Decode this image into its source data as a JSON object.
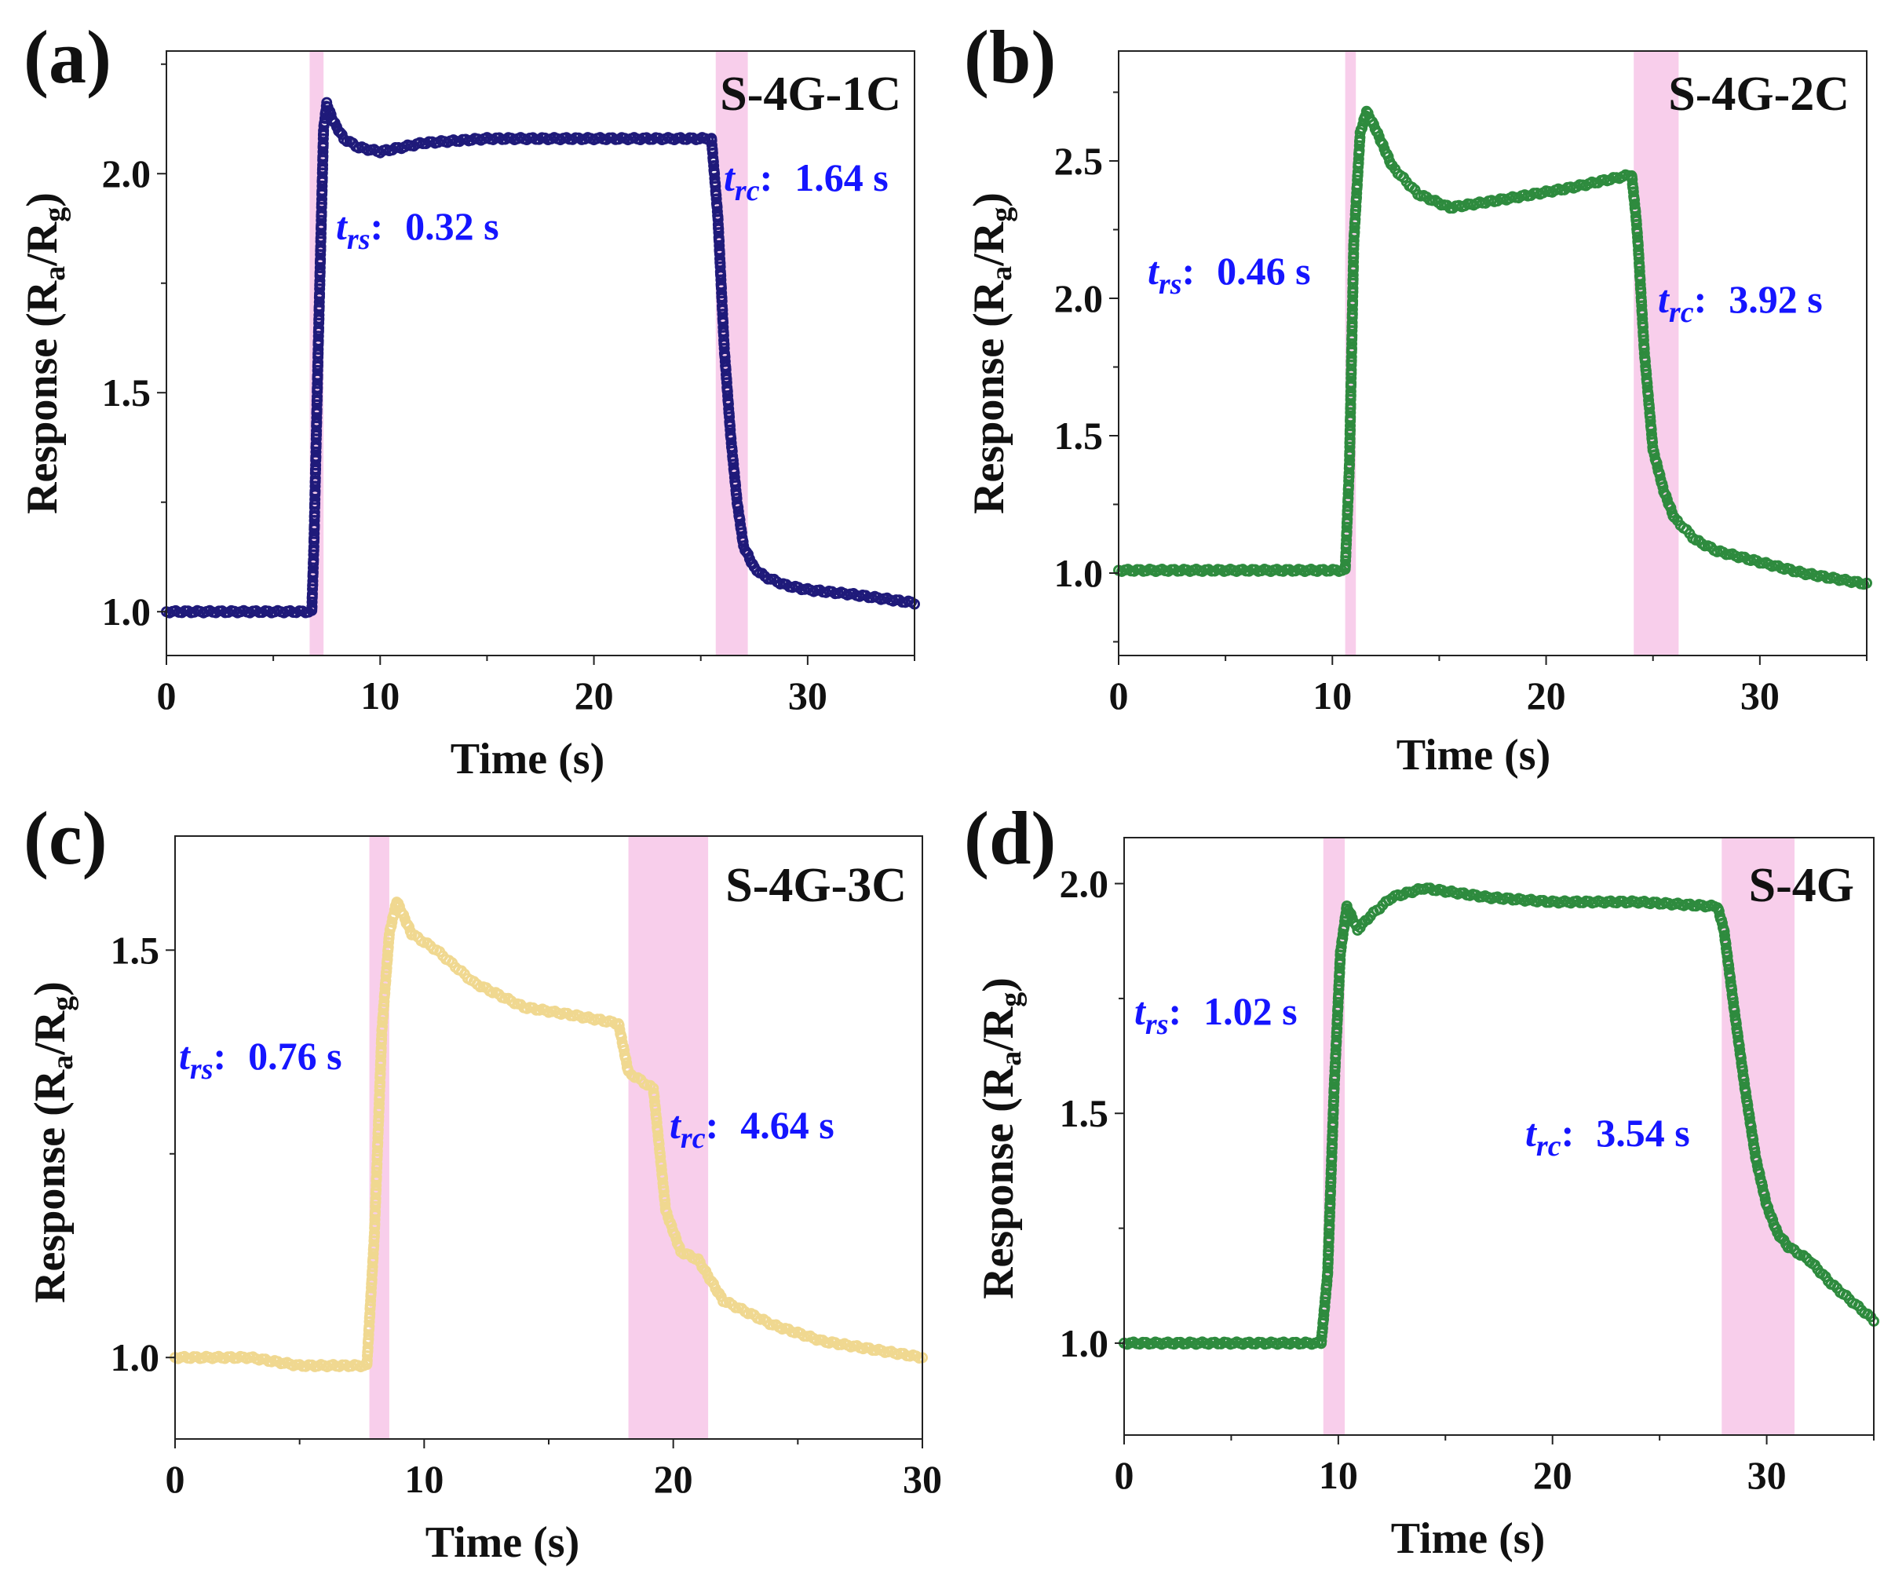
{
  "chart_data": [
    {
      "type": "scatter",
      "panel_label": "(a)",
      "sample": "S-4G-1C",
      "xlabel": "Time (s)",
      "ylabel_main": "Response (R",
      "ylabel_sub1": "a",
      "ylabel_mid": "/R",
      "ylabel_sub2": "g",
      "ylabel_end": ")",
      "xlim": [
        0,
        35
      ],
      "ylim": [
        0.9,
        2.28
      ],
      "xticks": [
        0,
        10,
        20,
        30
      ],
      "xtick_labels": [
        "0",
        "10",
        "20",
        "30"
      ],
      "yticks": [
        1.0,
        1.5,
        2.0
      ],
      "ytick_labels": [
        "1.0",
        "1.5",
        "2.0"
      ],
      "color": "#1f1a7a",
      "shaded_regions": [
        [
          6.7,
          7.35
        ],
        [
          25.7,
          27.2
        ]
      ],
      "shade_color": "#f7c6e8",
      "response_time": {
        "symbol": "t",
        "sub": "rs",
        "sep": ":",
        "value": "0.32 s"
      },
      "recovery_time": {
        "symbol": "t",
        "sub": "rc",
        "sep": ":",
        "value": "1.64 s"
      },
      "series": [
        {
          "x": [
            0,
            6.8,
            6.9,
            7.1,
            7.35,
            7.5,
            7.8,
            8.3,
            9,
            10,
            12,
            15,
            20,
            25.5,
            25.8,
            26.1,
            26.4,
            26.7,
            27,
            27.5,
            28,
            29,
            30,
            32,
            35
          ],
          "y": [
            1.0,
            1.0,
            1.15,
            1.6,
            2.1,
            2.16,
            2.12,
            2.08,
            2.06,
            2.05,
            2.07,
            2.08,
            2.08,
            2.08,
            1.9,
            1.6,
            1.4,
            1.25,
            1.15,
            1.1,
            1.08,
            1.06,
            1.05,
            1.04,
            1.02
          ]
        }
      ]
    },
    {
      "type": "scatter",
      "panel_label": "(b)",
      "sample": "S-4G-2C",
      "xlabel": "Time (s)",
      "ylabel_main": "Response (R",
      "ylabel_sub1": "a",
      "ylabel_mid": "/R",
      "ylabel_sub2": "g",
      "ylabel_end": ")",
      "xlim": [
        0,
        35
      ],
      "ylim": [
        0.7,
        2.9
      ],
      "xticks": [
        0,
        10,
        20,
        30
      ],
      "xtick_labels": [
        "0",
        "10",
        "20",
        "30"
      ],
      "yticks": [
        1.0,
        1.5,
        2.0,
        2.5
      ],
      "ytick_labels": [
        "1.0",
        "1.5",
        "2.0",
        "2.5"
      ],
      "color": "#2e8b3e",
      "shaded_regions": [
        [
          10.6,
          11.1
        ],
        [
          24.1,
          26.2
        ]
      ],
      "shade_color": "#f7c6e8",
      "response_time": {
        "symbol": "t",
        "sub": "rs",
        "sep": ":",
        "value": "0.46 s"
      },
      "recovery_time": {
        "symbol": "t",
        "sub": "rc",
        "sep": ":",
        "value": "3.92 s"
      },
      "series": [
        {
          "x": [
            0,
            10.6,
            10.8,
            11.0,
            11.3,
            11.6,
            12,
            12.8,
            14,
            15.5,
            18,
            21,
            24,
            24.2,
            24.3,
            24.6,
            25,
            25.5,
            26,
            27,
            28,
            30,
            32,
            35
          ],
          "y": [
            1.01,
            1.01,
            1.4,
            2.2,
            2.6,
            2.68,
            2.62,
            2.48,
            2.38,
            2.33,
            2.36,
            2.4,
            2.45,
            2.3,
            2.2,
            1.8,
            1.45,
            1.3,
            1.2,
            1.12,
            1.08,
            1.04,
            1.0,
            0.96
          ]
        }
      ]
    },
    {
      "type": "scatter",
      "panel_label": "(c)",
      "sample": "S-4G-3C",
      "xlabel": "Time (s)",
      "ylabel_main": "Response (R",
      "ylabel_sub1": "a",
      "ylabel_mid": "/R",
      "ylabel_sub2": "g",
      "ylabel_end": ")",
      "xlim": [
        0,
        30
      ],
      "ylim": [
        0.9,
        1.64
      ],
      "xticks": [
        0,
        10,
        20,
        30
      ],
      "xtick_labels": [
        "0",
        "10",
        "20",
        "30"
      ],
      "yticks": [
        1.0,
        1.5
      ],
      "ytick_labels": [
        "1.0",
        "1.5"
      ],
      "color": "#f0d890",
      "shaded_regions": [
        [
          7.8,
          8.6
        ],
        [
          18.2,
          21.4
        ]
      ],
      "shade_color": "#f7c6e8",
      "response_time": {
        "symbol": "t",
        "sub": "rs",
        "sep": ":",
        "value": "0.76 s"
      },
      "recovery_time": {
        "symbol": "t",
        "sub": "rc",
        "sep": ":",
        "value": "4.64 s"
      },
      "series": [
        {
          "x": [
            0,
            3,
            5,
            7.7,
            8.0,
            8.3,
            8.6,
            8.9,
            9.5,
            10.5,
            12,
            14,
            16,
            17.8,
            18.2,
            18.7,
            19.2,
            19.7,
            20.3,
            21,
            22,
            24,
            26,
            28,
            30
          ],
          "y": [
            1.0,
            1.0,
            0.99,
            0.99,
            1.15,
            1.4,
            1.52,
            1.56,
            1.52,
            1.5,
            1.46,
            1.43,
            1.42,
            1.41,
            1.35,
            1.34,
            1.33,
            1.18,
            1.13,
            1.12,
            1.07,
            1.04,
            1.02,
            1.01,
            1.0
          ]
        }
      ]
    },
    {
      "type": "scatter",
      "panel_label": "(d)",
      "sample": "S-4G",
      "xlabel": "Time (s)",
      "ylabel_main": "Response (R",
      "ylabel_sub1": "a",
      "ylabel_mid": "/R",
      "ylabel_sub2": "g",
      "ylabel_end": ")",
      "xlim": [
        0,
        35
      ],
      "ylim": [
        0.8,
        2.1
      ],
      "xticks": [
        0,
        10,
        20,
        30
      ],
      "xtick_labels": [
        "0",
        "10",
        "20",
        "30"
      ],
      "yticks": [
        1.0,
        1.5,
        2.0
      ],
      "ytick_labels": [
        "1.0",
        "1.5",
        "2.0"
      ],
      "color": "#2e8b3e",
      "shaded_regions": [
        [
          9.3,
          10.3
        ],
        [
          27.9,
          31.3
        ]
      ],
      "shade_color": "#f7c6e8",
      "response_time": {
        "symbol": "t",
        "sub": "rs",
        "sep": ":",
        "value": "1.02 s"
      },
      "recovery_time": {
        "symbol": "t",
        "sub": "rc",
        "sep": ":",
        "value": "3.54 s"
      },
      "series": [
        {
          "x": [
            0,
            9.2,
            9.5,
            9.8,
            10.1,
            10.4,
            10.9,
            11.5,
            12.5,
            14,
            17,
            20,
            24,
            27.7,
            28.0,
            28.5,
            29,
            29.5,
            30,
            30.5,
            31,
            32,
            33,
            34,
            35
          ],
          "y": [
            1.0,
            1.0,
            1.15,
            1.55,
            1.85,
            1.95,
            1.9,
            1.93,
            1.97,
            1.99,
            1.97,
            1.96,
            1.96,
            1.95,
            1.9,
            1.72,
            1.55,
            1.4,
            1.3,
            1.24,
            1.21,
            1.18,
            1.13,
            1.09,
            1.05
          ]
        }
      ]
    }
  ]
}
